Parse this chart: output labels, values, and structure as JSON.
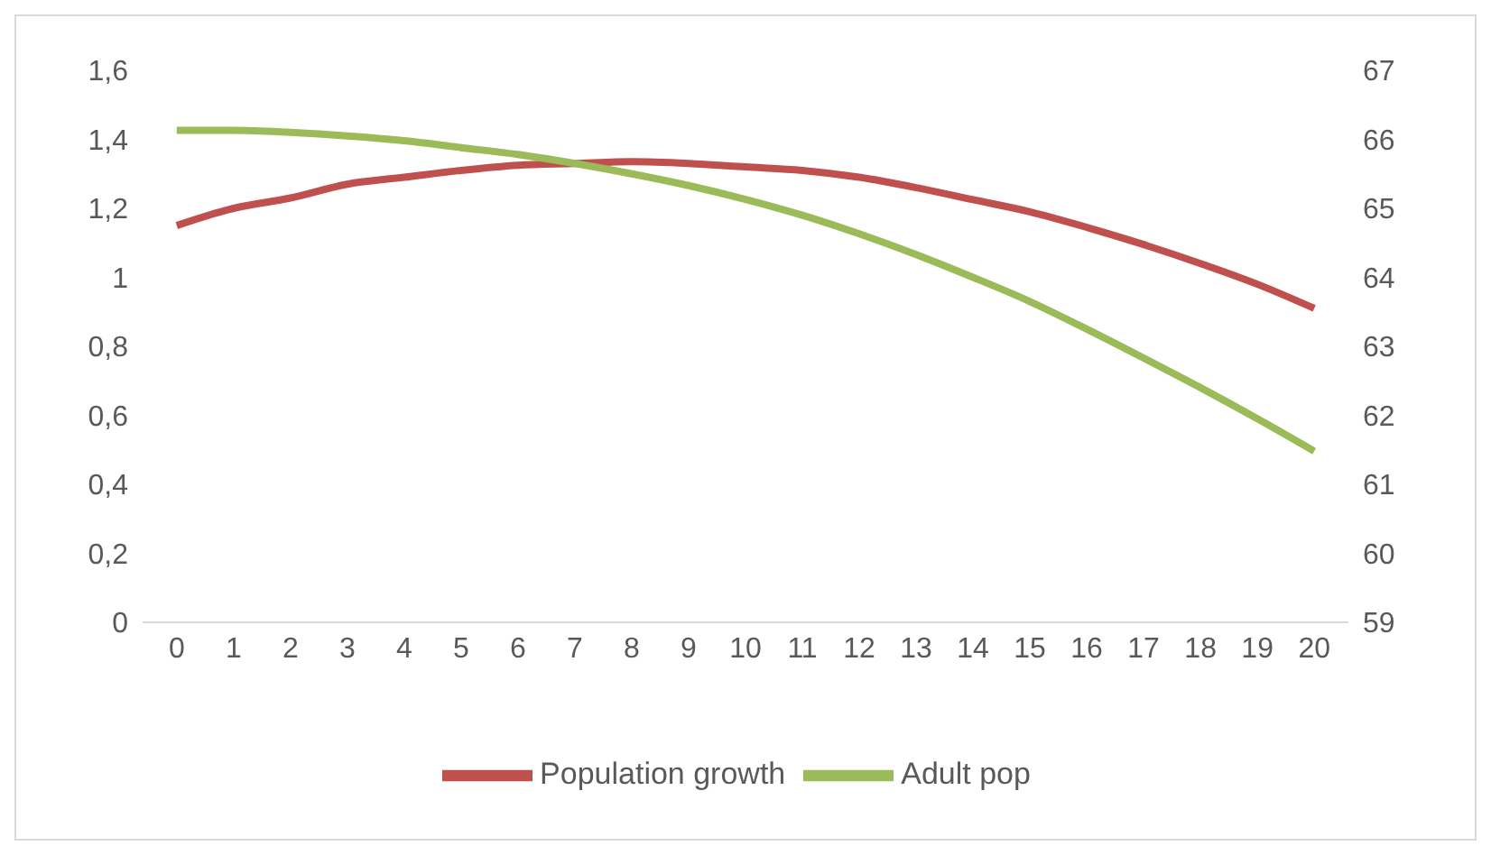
{
  "chart_data": {
    "type": "line",
    "x": [
      0,
      1,
      2,
      3,
      4,
      5,
      6,
      7,
      8,
      9,
      10,
      11,
      12,
      13,
      14,
      15,
      16,
      17,
      18,
      19,
      20
    ],
    "series": [
      {
        "name": "Population growth",
        "color": "#c0504d",
        "values": [
          1.15,
          1.2,
          1.23,
          1.27,
          1.29,
          1.31,
          1.325,
          1.33,
          1.335,
          1.33,
          1.32,
          1.31,
          1.29,
          1.26,
          1.225,
          1.19,
          1.145,
          1.095,
          1.04,
          0.98,
          0.91
        ]
      },
      {
        "name": "Adult pop",
        "color": "#9bbb59",
        "axis": "y2",
        "values": [
          66.13,
          66.13,
          66.1,
          66.05,
          65.98,
          65.88,
          65.78,
          65.65,
          65.5,
          65.33,
          65.13,
          64.9,
          64.63,
          64.33,
          64.0,
          63.65,
          63.25,
          62.83,
          62.4,
          61.95,
          61.48
        ]
      }
    ],
    "xlim": [
      -0.6,
      20.6
    ],
    "xticks": [
      0,
      1,
      2,
      3,
      4,
      5,
      6,
      7,
      8,
      9,
      10,
      11,
      12,
      13,
      14,
      15,
      16,
      17,
      18,
      19,
      20
    ],
    "ylim": [
      0,
      1.6
    ],
    "yticks": [
      0,
      {
        "value": 0.2,
        "label": "0,2"
      },
      {
        "value": 0.4,
        "label": "0,4"
      },
      {
        "value": 0.6,
        "label": "0,6"
      },
      {
        "value": 0.8,
        "label": "0,8"
      },
      1,
      {
        "value": 1.2,
        "label": "1,2"
      },
      {
        "value": 1.4,
        "label": "1,4"
      },
      {
        "value": 1.6,
        "label": "1,6"
      }
    ],
    "y2lim": [
      59,
      67
    ],
    "y2ticks": [
      59,
      60,
      61,
      62,
      63,
      64,
      65,
      66,
      67
    ],
    "legend": "bottom",
    "marker": "none",
    "line_style": "solid",
    "grid": false
  }
}
